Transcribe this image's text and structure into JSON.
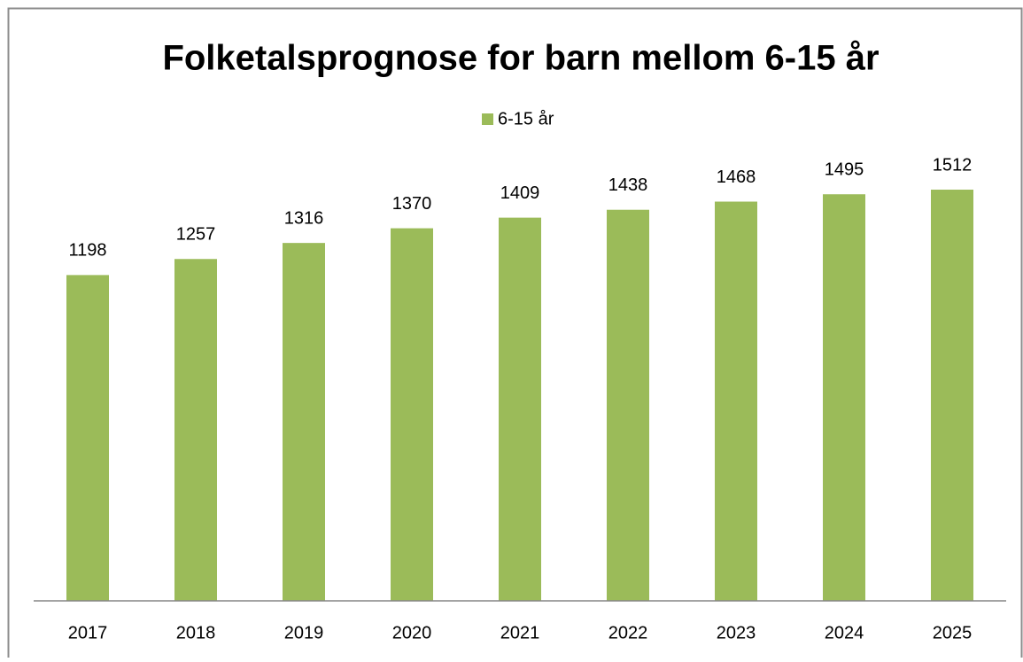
{
  "chart_data": {
    "type": "bar",
    "title": "Folketalsprognose for barn mellom 6-15 år",
    "categories": [
      "2017",
      "2018",
      "2019",
      "2020",
      "2021",
      "2022",
      "2023",
      "2024",
      "2025"
    ],
    "series": [
      {
        "name": "6-15 år",
        "color": "#9bbb59",
        "values": [
          1198,
          1257,
          1316,
          1370,
          1409,
          1438,
          1468,
          1495,
          1512
        ]
      }
    ],
    "ylim": [
      0,
      1600
    ],
    "legend": "top",
    "data_labels": true
  }
}
